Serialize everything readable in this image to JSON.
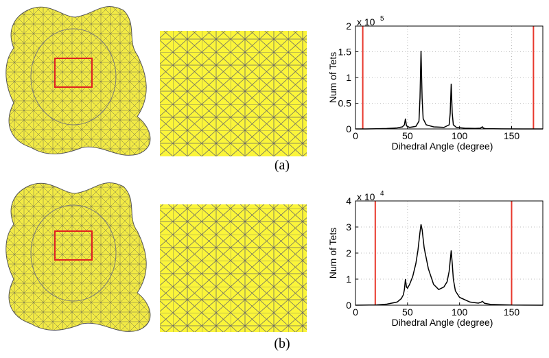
{
  "chart_data": [
    {
      "type": "line",
      "x_label": "Dihedral Angle (degree)",
      "y_label": "Num of Tets",
      "y_multiplier": {
        "base": "x 10",
        "exponent": "5"
      },
      "x": [
        0,
        10,
        20,
        30,
        40,
        45,
        47,
        48,
        49,
        52,
        58,
        61,
        62,
        63,
        64,
        65,
        68,
        75,
        85,
        90,
        91,
        92,
        93,
        94,
        97,
        105,
        115,
        120,
        121,
        122,
        123,
        125,
        140,
        160,
        180
      ],
      "values": [
        0,
        0,
        200,
        800,
        2000,
        4000,
        8000,
        20000,
        6000,
        3000,
        5000,
        15000,
        60000,
        152000,
        60000,
        20000,
        8000,
        4000,
        3000,
        8000,
        30000,
        88000,
        30000,
        8000,
        3000,
        1500,
        1000,
        1500,
        3000,
        4000,
        1500,
        500,
        100,
        0,
        0
      ],
      "color": "#000000",
      "vlines": [
        {
          "x": 7,
          "color": "#e8372c"
        },
        {
          "x": 171,
          "color": "#e8372c"
        }
      ],
      "xlim": [
        0,
        180
      ],
      "xticks": [
        0,
        50,
        100,
        150
      ],
      "ylim": [
        0,
        200000
      ],
      "yticks": [
        0,
        {
          "value": 50000,
          "label": "0.5"
        },
        {
          "value": 100000,
          "label": "1"
        },
        {
          "value": 150000,
          "label": "1.5"
        },
        {
          "value": 200000,
          "label": "2"
        }
      ],
      "grid": true
    },
    {
      "type": "line",
      "x_label": "Dihedral Angle (degree)",
      "y_label": "Num of Tets",
      "y_multiplier": {
        "base": "x 10",
        "exponent": "4"
      },
      "x": [
        0,
        20,
        30,
        40,
        44,
        46,
        47,
        48,
        49,
        50,
        52,
        55,
        58,
        60,
        62,
        63,
        64,
        66,
        70,
        75,
        80,
        85,
        88,
        90,
        91,
        92,
        93,
        94,
        96,
        100,
        110,
        118,
        121,
        122,
        124,
        130,
        150,
        180
      ],
      "values": [
        0,
        100,
        400,
        1200,
        2500,
        4000,
        6000,
        10000,
        7000,
        6500,
        8000,
        11000,
        16000,
        21000,
        28000,
        31000,
        29000,
        22000,
        14000,
        8000,
        6000,
        7000,
        9000,
        13000,
        17000,
        21000,
        16000,
        10000,
        5500,
        3000,
        1200,
        800,
        1200,
        1500,
        700,
        300,
        50,
        0
      ],
      "color": "#000000",
      "vlines": [
        {
          "x": 19,
          "color": "#e8372c"
        },
        {
          "x": 150,
          "color": "#e8372c"
        }
      ],
      "xlim": [
        0,
        180
      ],
      "xticks": [
        0,
        50,
        100,
        150
      ],
      "ylim": [
        0,
        40000
      ],
      "yticks": [
        0,
        {
          "value": 10000,
          "label": "1"
        },
        {
          "value": 20000,
          "label": "2"
        },
        {
          "value": 30000,
          "label": "3"
        },
        {
          "value": 40000,
          "label": "4"
        }
      ],
      "grid": true
    }
  ],
  "captions": [
    "(a)",
    "(b)"
  ]
}
